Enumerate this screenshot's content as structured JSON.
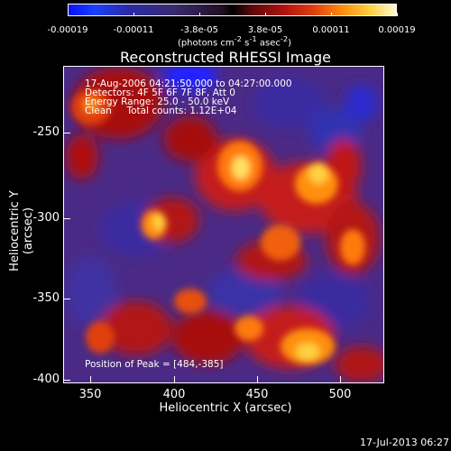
{
  "colorbar": {
    "tick_labels": [
      "-0.00019",
      "-0.00011",
      "-3.8e-05",
      "3.8e-05",
      "0.00011",
      "0.00019"
    ],
    "unit_html": "(photons cm<sup>-2</sup> s<sup>-1</sup> asec<sup>-2</sup>)",
    "colors": {
      "min": "#0b10ff",
      "zero": "#000000",
      "max": "#fff8d0"
    }
  },
  "plot": {
    "title": "Reconstructed RHESSI Image",
    "info_lines": [
      "17-Aug-2006 04:21:50.000 to 04:27:00.000",
      "Detectors: 4F 5F 6F 7F 8F, Att 0",
      "Energy Range: 25.0 - 50.0 keV",
      "Clean     Total counts: 1.12E+04"
    ],
    "peak_text": "Position of Peak = [484,-385]"
  },
  "axes": {
    "xlabel": "Heliocentric X (arcsec)",
    "ylabel": "Heliocentric Y (arcsec)",
    "x_ticks": [
      "350",
      "400",
      "450",
      "500"
    ],
    "y_ticks": [
      "-250",
      "-300",
      "-350",
      "-400"
    ]
  },
  "footer": "17-Jul-2013 06:27"
}
